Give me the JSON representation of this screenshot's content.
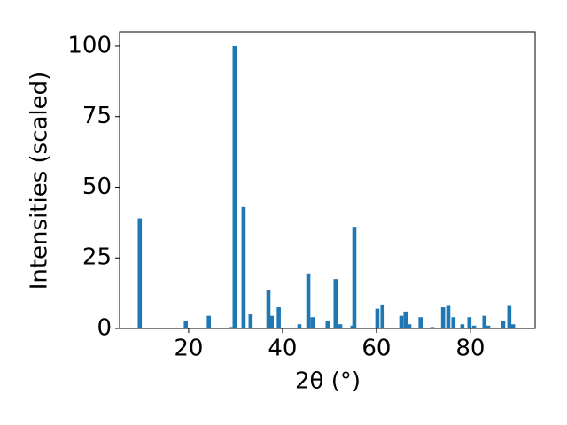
{
  "chart_data": {
    "type": "bar",
    "xlabel": "2θ (°)",
    "ylabel": "Intensities (scaled)",
    "x": [
      9.6,
      19.4,
      24.3,
      29.1,
      29.8,
      31.7,
      33.2,
      37.0,
      37.7,
      39.2,
      43.6,
      45.5,
      46.4,
      49.6,
      51.3,
      52.3,
      54.9,
      55.3,
      60.2,
      61.3,
      65.3,
      66.2,
      67.0,
      69.4,
      71.9,
      74.2,
      75.3,
      76.4,
      78.3,
      79.8,
      80.8,
      83.0,
      83.8,
      87.0,
      88.3,
      89.1
    ],
    "values": [
      39,
      2.5,
      4.5,
      0.5,
      100,
      43,
      5,
      13.5,
      4.5,
      7.5,
      1.5,
      19.5,
      4,
      2.5,
      17.5,
      1.5,
      1,
      36,
      7,
      8.5,
      4.5,
      6,
      1.5,
      4,
      0.5,
      7.5,
      8,
      4,
      1.5,
      4,
      1,
      4.5,
      1,
      2.5,
      8,
      1.5
    ],
    "color": "#1f77b4",
    "xlim": [
      5.3,
      93.8
    ],
    "xticks": [
      20,
      40,
      60,
      80
    ],
    "ylim": [
      0,
      105
    ],
    "yticks": [
      0,
      25,
      50,
      75,
      100
    ],
    "grid": false
  }
}
